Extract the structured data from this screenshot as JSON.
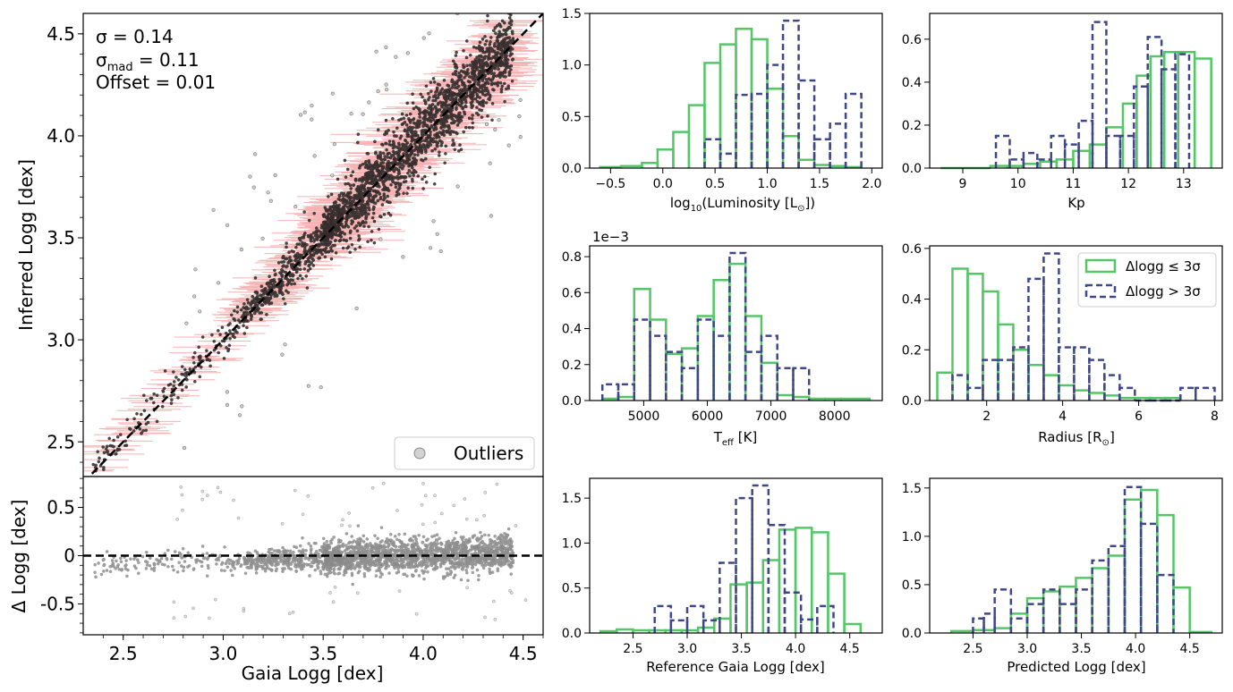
{
  "colors": {
    "green": "#55c667",
    "navy": "#404788",
    "errorbar": "#f4a6a6",
    "point": "#333333",
    "axis": "#000000"
  },
  "chart_data": [
    {
      "id": "main",
      "type": "scatter",
      "xlabel": "Gaia Logg [dex]",
      "ylabel": "Inferred Logg [dex]",
      "xlim": [
        2.3,
        4.6
      ],
      "ylim": [
        2.33,
        4.6
      ],
      "xticks": [
        2.5,
        3.0,
        3.5,
        4.0,
        4.5
      ],
      "yticks": [
        2.5,
        3.0,
        3.5,
        4.0,
        4.5
      ],
      "ytick_labels": [
        "2.5",
        "3.0",
        "3.5",
        "4.0",
        "4.5"
      ],
      "stats": {
        "sigma_label": "σ = 0.14",
        "sigma_mad_symbol": "σ",
        "sigma_mad_sub": "mad",
        "sigma_mad_value": " = 0.11",
        "offset_label": "Offset = 0.01"
      },
      "legend": {
        "label": "Outliers",
        "position": "lower-right"
      },
      "reference_line": "y = x",
      "scatter_description": "dense cloud of ~8000 stars along y=x; red horizontal error bars; grey outliers"
    },
    {
      "id": "residual",
      "type": "scatter",
      "xlabel": "Gaia Logg [dex]",
      "ylabel": "Δ Logg [dex]",
      "xlim": [
        2.3,
        4.6
      ],
      "ylim": [
        -0.82,
        0.82
      ],
      "xticks": [
        2.5,
        3.0,
        3.5,
        4.0,
        4.5
      ],
      "xtick_labels": [
        "2.5",
        "3.0",
        "3.5",
        "4.0",
        "4.5"
      ],
      "yticks": [
        0.5,
        0,
        -0.5
      ],
      "ytick_labels": [
        "0.5",
        "0",
        "-0.5"
      ],
      "reference_line": "y = 0"
    },
    {
      "id": "lum",
      "type": "bar",
      "xlabel_main": "log",
      "xlabel_sub": "10",
      "xlabel_rest": "(Luminosity [L",
      "xlabel_sun": "⊙",
      "xlabel_end": "])",
      "xlim": [
        -0.7,
        2.1
      ],
      "ylim": [
        0,
        1.5
      ],
      "xticks": [
        -0.5,
        0.0,
        0.5,
        1.0,
        1.5,
        2.0
      ],
      "xtick_labels": [
        "−0.5",
        "0.0",
        "0.5",
        "1.0",
        "1.5",
        "2.0"
      ],
      "yticks": [
        0,
        0.5,
        1.0,
        1.5
      ],
      "ytick_labels": [
        "0.0",
        "0.5",
        "1.0",
        "1.5"
      ],
      "series": [
        {
          "name": "Δlogg ≤ 3σ",
          "edges": [
            -0.6,
            -0.4,
            -0.2,
            -0.05,
            0.1,
            0.25,
            0.4,
            0.55,
            0.7,
            0.85,
            1.0,
            1.15,
            1.3,
            1.45,
            1.6,
            1.75,
            1.9
          ],
          "values": [
            0.01,
            0.02,
            0.05,
            0.18,
            0.35,
            0.61,
            1.02,
            1.2,
            1.35,
            1.25,
            0.77,
            0.31,
            0.08,
            0.03,
            0.02,
            0.01
          ]
        },
        {
          "name": "Δlogg > 3σ",
          "edges": [
            0.4,
            0.55,
            0.7,
            0.85,
            1.0,
            1.15,
            1.3,
            1.45,
            1.6,
            1.75,
            1.9
          ],
          "values": [
            0.28,
            0.14,
            0.71,
            0.72,
            1.0,
            1.43,
            0.85,
            0.28,
            0.43,
            0.72
          ]
        }
      ]
    },
    {
      "id": "kp",
      "type": "bar",
      "xlabel": "Kp",
      "xlim": [
        8.4,
        13.7
      ],
      "ylim": [
        0,
        0.72
      ],
      "xticks": [
        9,
        10,
        11,
        12,
        13
      ],
      "xtick_labels": [
        "9",
        "10",
        "11",
        "12",
        "13"
      ],
      "yticks": [
        0,
        0.2,
        0.4,
        0.6
      ],
      "ytick_labels": [
        "0.0",
        "0.2",
        "0.4",
        "0.6"
      ],
      "series": [
        {
          "name": "Δlogg ≤ 3σ",
          "edges": [
            8.6,
            9.5,
            9.8,
            10.1,
            10.4,
            10.7,
            11.0,
            11.3,
            11.6,
            11.9,
            12.15,
            12.4,
            12.65,
            12.9,
            13.2,
            13.5
          ],
          "values": [
            0.0,
            0.01,
            0.01,
            0.02,
            0.03,
            0.04,
            0.08,
            0.11,
            0.19,
            0.3,
            0.43,
            0.52,
            0.54,
            0.54,
            0.51
          ]
        },
        {
          "name": "Δlogg > 3σ",
          "edges": [
            9.6,
            9.85,
            10.1,
            10.35,
            10.6,
            10.85,
            11.1,
            11.35,
            11.6,
            11.85,
            12.1,
            12.35,
            12.6,
            12.85,
            13.1
          ],
          "values": [
            0.15,
            0.04,
            0.07,
            0.04,
            0.15,
            0.11,
            0.22,
            0.68,
            0.15,
            0.15,
            0.38,
            0.61,
            0.46,
            0.53
          ]
        }
      ]
    },
    {
      "id": "teff",
      "type": "bar",
      "xlabel_main": "T",
      "xlabel_sub": "eff",
      "xlabel_rest": " [K]",
      "offset_text": "1e−3",
      "xlim": [
        4150,
        8750
      ],
      "ylim": [
        0,
        0.86
      ],
      "xticks": [
        5000,
        6000,
        7000,
        8000
      ],
      "xtick_labels": [
        "5000",
        "6000",
        "7000",
        "8000"
      ],
      "yticks": [
        0,
        0.2,
        0.4,
        0.6,
        0.8
      ],
      "ytick_labels": [
        "0.0",
        "0.2",
        "0.4",
        "0.6",
        "0.8"
      ],
      "series": [
        {
          "name": "Δlogg ≤ 3σ",
          "edges": [
            4350,
            4600,
            4850,
            5100,
            5350,
            5600,
            5850,
            6100,
            6350,
            6600,
            6850,
            7100,
            7350,
            7600,
            7850,
            8100,
            8550
          ],
          "values": [
            0.01,
            0.02,
            0.62,
            0.45,
            0.26,
            0.29,
            0.47,
            0.67,
            0.76,
            0.47,
            0.21,
            0.03,
            0.02,
            0.01,
            0.01,
            0.01
          ]
        },
        {
          "name": "Δlogg > 3σ",
          "edges": [
            4350,
            4600,
            4850,
            5100,
            5350,
            5600,
            5850,
            6100,
            6350,
            6600,
            6850,
            7100,
            7350,
            7600
          ],
          "values": [
            0.09,
            0.09,
            0.45,
            0.36,
            0.27,
            0.18,
            0.45,
            0.36,
            0.82,
            0.27,
            0.36,
            0.18,
            0.18
          ]
        }
      ]
    },
    {
      "id": "radius",
      "type": "bar",
      "xlabel_main": "Radius [R",
      "xlabel_sun": "⊙",
      "xlabel_end": "]",
      "xlim": [
        0.5,
        8.2
      ],
      "ylim": [
        0,
        0.61
      ],
      "xticks": [
        2,
        4,
        6,
        8
      ],
      "xtick_labels": [
        "2",
        "4",
        "6",
        "8"
      ],
      "yticks": [
        0,
        0.2,
        0.4,
        0.6
      ],
      "ytick_labels": [
        "0.0",
        "0.2",
        "0.4",
        "0.6"
      ],
      "legend": {
        "entries": [
          "Δlogg ≤ 3σ",
          "Δlogg > 3σ"
        ],
        "position": "upper-right"
      },
      "series": [
        {
          "name": "Δlogg ≤ 3σ",
          "edges": [
            0.7,
            1.1,
            1.5,
            1.9,
            2.3,
            2.7,
            3.1,
            3.5,
            3.9,
            4.3,
            4.7,
            5.1,
            5.5,
            5.9,
            6.3,
            6.7,
            7.1
          ],
          "values": [
            0.11,
            0.52,
            0.5,
            0.43,
            0.3,
            0.2,
            0.14,
            0.1,
            0.06,
            0.04,
            0.03,
            0.02,
            0.01,
            0.01,
            0.01,
            0.01
          ]
        },
        {
          "name": "Δlogg > 3σ",
          "edges": [
            1.1,
            1.5,
            1.9,
            2.3,
            2.7,
            3.1,
            3.5,
            3.9,
            4.3,
            4.7,
            5.1,
            5.5,
            5.9,
            6.3,
            6.7,
            7.1,
            7.5,
            8.0
          ],
          "values": [
            0.1,
            0.05,
            0.16,
            0.16,
            0.21,
            0.48,
            0.58,
            0.21,
            0.21,
            0.16,
            0.1,
            0.05,
            0.0,
            0.0,
            0.0,
            0.05,
            0.05
          ]
        }
      ]
    },
    {
      "id": "ref_gaia",
      "type": "bar",
      "xlabel": "Reference Gaia Logg [dex]",
      "xlim": [
        2.1,
        4.8
      ],
      "ylim": [
        0,
        1.72
      ],
      "xticks": [
        2.5,
        3.0,
        3.5,
        4.0,
        4.5
      ],
      "xtick_labels": [
        "2.5",
        "3.0",
        "3.5",
        "4.0",
        "4.5"
      ],
      "yticks": [
        0,
        0.5,
        1.0,
        1.5
      ],
      "ytick_labels": [
        "0.0",
        "0.5",
        "1.0",
        "1.5"
      ],
      "series": [
        {
          "name": "Δlogg ≤ 3σ",
          "edges": [
            2.2,
            2.35,
            2.5,
            2.65,
            2.8,
            2.95,
            3.1,
            3.25,
            3.4,
            3.55,
            3.7,
            3.85,
            4.0,
            4.15,
            4.3,
            4.45,
            4.6
          ],
          "values": [
            0.02,
            0.04,
            0.03,
            0.03,
            0.03,
            0.03,
            0.06,
            0.16,
            0.54,
            0.56,
            0.81,
            1.15,
            1.17,
            1.12,
            0.66,
            0.1
          ]
        },
        {
          "name": "Δlogg > 3σ",
          "edges": [
            2.7,
            2.85,
            3.0,
            3.15,
            3.3,
            3.45,
            3.6,
            3.75,
            3.9,
            4.05,
            4.2,
            4.35
          ],
          "values": [
            0.3,
            0.14,
            0.3,
            0.14,
            0.78,
            1.5,
            1.64,
            1.2,
            0.45,
            0.15,
            0.3
          ]
        }
      ]
    },
    {
      "id": "pred",
      "type": "bar",
      "xlabel": "Predicted Logg [dex]",
      "xlim": [
        2.1,
        4.8
      ],
      "ylim": [
        0,
        1.6
      ],
      "xticks": [
        2.5,
        3.0,
        3.5,
        4.0,
        4.5
      ],
      "xtick_labels": [
        "2.5",
        "3.0",
        "3.5",
        "4.0",
        "4.5"
      ],
      "yticks": [
        0,
        0.5,
        1.0,
        1.5
      ],
      "ytick_labels": [
        "0.0",
        "0.5",
        "1.0",
        "1.5"
      ],
      "series": [
        {
          "name": "Δlogg ≤ 3σ",
          "edges": [
            2.3,
            2.5,
            2.7,
            2.85,
            3.0,
            3.15,
            3.3,
            3.45,
            3.6,
            3.75,
            3.9,
            4.05,
            4.2,
            4.35,
            4.5,
            4.7
          ],
          "values": [
            0.02,
            0.03,
            0.05,
            0.2,
            0.36,
            0.43,
            0.48,
            0.57,
            0.67,
            0.8,
            1.38,
            1.48,
            1.22,
            0.47,
            0.01
          ]
        },
        {
          "name": "Δlogg > 3σ",
          "edges": [
            2.5,
            2.6,
            2.7,
            2.85,
            3.0,
            3.15,
            3.3,
            3.45,
            3.6,
            3.75,
            3.9,
            4.05,
            4.2,
            4.35
          ],
          "values": [
            0.15,
            0.2,
            0.45,
            0.15,
            0.3,
            0.45,
            0.3,
            0.45,
            0.75,
            0.9,
            1.51,
            1.13,
            0.6
          ]
        }
      ]
    }
  ]
}
